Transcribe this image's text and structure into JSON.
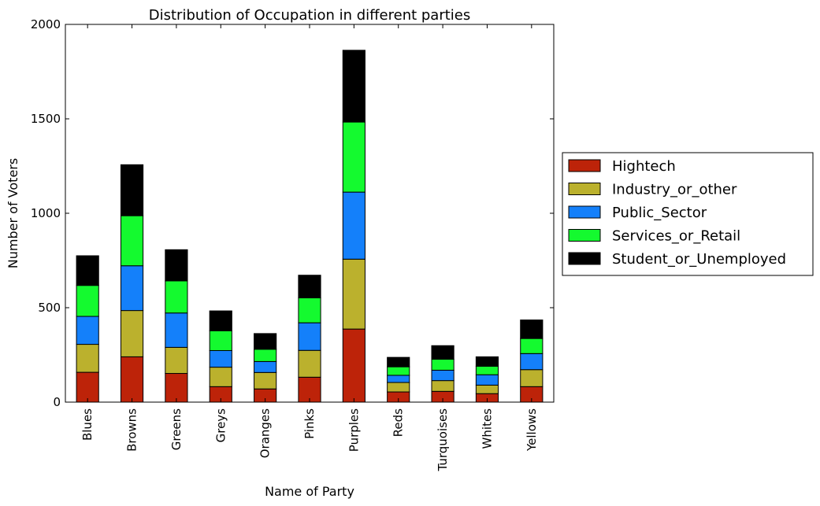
{
  "chart_data": {
    "type": "bar",
    "stacked": true,
    "title": "Distribution of Occupation in different parties",
    "xlabel": "Name of Party",
    "ylabel": "Number of Voters",
    "ylim": [
      0,
      2000
    ],
    "yticks": [
      "0",
      "500",
      "1000",
      "1500",
      "2000"
    ],
    "grid": false,
    "legend_position": "right",
    "categories": [
      "Blues",
      "Browns",
      "Greens",
      "Greys",
      "Oranges",
      "Pinks",
      "Purples",
      "Reds",
      "Turquoises",
      "Whites",
      "Yellows"
    ],
    "series": [
      {
        "name": "Hightech",
        "color": "#bd2309",
        "values": [
          158,
          240,
          152,
          82,
          70,
          132,
          387,
          54,
          57,
          45,
          82
        ]
      },
      {
        "name": "Industry_or_other",
        "color": "#bbb12d",
        "values": [
          148,
          245,
          138,
          103,
          87,
          142,
          370,
          50,
          57,
          45,
          90
        ]
      },
      {
        "name": "Public_Sector",
        "color": "#1480fa",
        "values": [
          148,
          237,
          182,
          88,
          58,
          146,
          355,
          38,
          55,
          55,
          85
        ]
      },
      {
        "name": "Services_or_Retail",
        "color": "#14fa2f",
        "values": [
          164,
          265,
          170,
          105,
          65,
          132,
          371,
          45,
          58,
          45,
          80
        ]
      },
      {
        "name": "Student_or_Unemployed",
        "color": "#000000",
        "values": [
          157,
          270,
          165,
          105,
          83,
          120,
          380,
          50,
          72,
          50,
          98
        ]
      }
    ]
  }
}
